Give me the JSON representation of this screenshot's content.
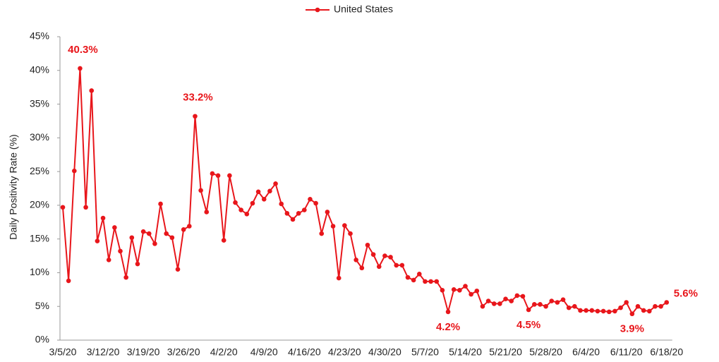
{
  "chart_data": {
    "type": "line",
    "y_label": "Daily Positivity Rate (%)",
    "categories": [
      "3/5/20",
      null,
      null,
      null,
      null,
      null,
      null,
      "3/12/20",
      null,
      null,
      null,
      null,
      null,
      null,
      "3/19/20",
      null,
      null,
      null,
      null,
      null,
      null,
      "3/26/20",
      null,
      null,
      null,
      null,
      null,
      null,
      "4/2/20",
      null,
      null,
      null,
      null,
      null,
      null,
      "4/9/20",
      null,
      null,
      null,
      null,
      null,
      null,
      "4/16/20",
      null,
      null,
      null,
      null,
      null,
      null,
      "4/23/20",
      null,
      null,
      null,
      null,
      null,
      null,
      "4/30/20",
      null,
      null,
      null,
      null,
      null,
      null,
      "5/7/20",
      null,
      null,
      null,
      null,
      null,
      null,
      "5/14/20",
      null,
      null,
      null,
      null,
      null,
      null,
      "5/21/20",
      null,
      null,
      null,
      null,
      null,
      null,
      "5/28/20",
      null,
      null,
      null,
      null,
      null,
      null,
      "6/4/20",
      null,
      null,
      null,
      null,
      null,
      null,
      "6/11/20",
      null,
      null,
      null,
      null,
      null,
      null,
      "6/18/20"
    ],
    "series": [
      {
        "name": "United States",
        "color": "#e8161b",
        "values": [
          19.7,
          8.8,
          25.1,
          40.3,
          19.7,
          37.0,
          14.7,
          18.1,
          11.9,
          16.7,
          13.2,
          9.3,
          15.2,
          11.3,
          16.1,
          15.8,
          14.3,
          20.2,
          15.8,
          15.2,
          10.5,
          16.4,
          16.9,
          33.2,
          22.2,
          19.0,
          24.7,
          24.4,
          14.8,
          24.4,
          20.4,
          19.3,
          18.7,
          20.3,
          22.0,
          20.9,
          22.1,
          23.2,
          20.2,
          18.8,
          17.9,
          18.8,
          19.3,
          20.9,
          20.3,
          15.8,
          19.0,
          16.9,
          9.2,
          17.0,
          15.8,
          11.9,
          10.7,
          14.1,
          12.7,
          10.9,
          12.5,
          12.3,
          11.1,
          11.1,
          9.3,
          8.9,
          9.8,
          8.7,
          8.7,
          8.7,
          7.4,
          4.2,
          7.5,
          7.4,
          8.0,
          6.8,
          7.3,
          5.0,
          5.8,
          5.4,
          5.4,
          6.1,
          5.8,
          6.6,
          6.5,
          4.5,
          5.3,
          5.3,
          5.0,
          5.8,
          5.6,
          6.0,
          4.8,
          5.0,
          4.4,
          4.4,
          4.4,
          4.3,
          4.3,
          4.2,
          4.3,
          4.8,
          5.6,
          3.9,
          5.0,
          4.4,
          4.3,
          5.0,
          5.0,
          5.6
        ],
        "value_labels": [
          null,
          null,
          null,
          "40.3%",
          null,
          null,
          null,
          null,
          null,
          null,
          null,
          null,
          null,
          null,
          null,
          null,
          null,
          null,
          null,
          null,
          null,
          null,
          null,
          "33.2%",
          null,
          null,
          null,
          null,
          null,
          null,
          null,
          null,
          null,
          null,
          null,
          null,
          null,
          null,
          null,
          null,
          null,
          null,
          null,
          null,
          null,
          null,
          null,
          null,
          null,
          null,
          null,
          null,
          null,
          null,
          null,
          null,
          null,
          null,
          null,
          null,
          null,
          null,
          null,
          null,
          null,
          null,
          null,
          "4.2%",
          null,
          null,
          null,
          null,
          null,
          null,
          null,
          null,
          null,
          null,
          null,
          null,
          null,
          "4.5%",
          null,
          null,
          null,
          null,
          null,
          null,
          null,
          null,
          null,
          null,
          null,
          null,
          null,
          null,
          null,
          null,
          null,
          "3.9%",
          null,
          null,
          null,
          null,
          null,
          "5.6%"
        ]
      }
    ],
    "ylim": [
      0,
      45
    ],
    "yticks": [
      {
        "value": 0,
        "label": "0%"
      },
      {
        "value": 5,
        "label": "5%"
      },
      {
        "value": 10,
        "label": "10%"
      },
      {
        "value": 15,
        "label": "15%"
      },
      {
        "value": 20,
        "label": "20%"
      },
      {
        "value": 25,
        "label": "25%"
      },
      {
        "value": 30,
        "label": "30%"
      },
      {
        "value": 35,
        "label": "35%"
      },
      {
        "value": 40,
        "label": "40%"
      },
      {
        "value": 45,
        "label": "45%"
      }
    ],
    "grid": false,
    "legend": "top"
  }
}
